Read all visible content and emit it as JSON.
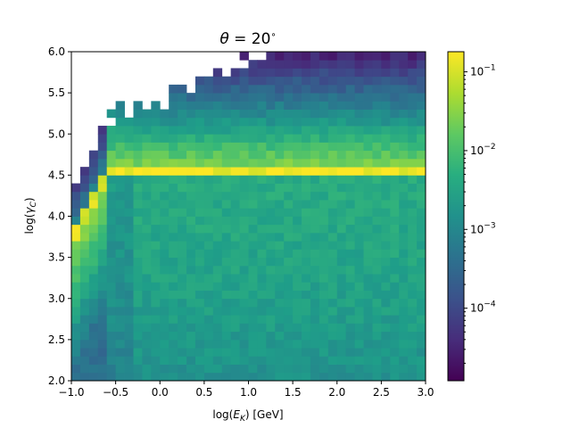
{
  "chart_data": {
    "type": "heatmap",
    "title": "θ = 20°",
    "title_parts": {
      "symbol": "θ",
      "rest": " = 20",
      "degree": "∘"
    },
    "xlabel": "log(E_K) [GeV]",
    "xlabel_parts": {
      "pre": "log(",
      "var": "E",
      "sub": "K",
      "post": ") [GeV]"
    },
    "ylabel": "log(γ_C)",
    "ylabel_parts": {
      "pre": "log(",
      "var": "γ",
      "sub": "C",
      "post": ")"
    },
    "xlim": [
      -1.0,
      3.0
    ],
    "ylim": [
      2.0,
      6.0
    ],
    "x_ticks": [
      "−1.0",
      "−0.5",
      "0.0",
      "0.5",
      "1.0",
      "1.5",
      "2.0",
      "2.5",
      "3.0"
    ],
    "x_tick_values": [
      -1.0,
      -0.5,
      0.0,
      0.5,
      1.0,
      1.5,
      2.0,
      2.5,
      3.0
    ],
    "y_ticks": [
      "2.0",
      "2.5",
      "3.0",
      "3.5",
      "4.0",
      "4.5",
      "5.0",
      "5.5",
      "6.0"
    ],
    "y_tick_values": [
      2.0,
      2.5,
      3.0,
      3.5,
      4.0,
      4.5,
      5.0,
      5.5,
      6.0
    ],
    "colorbar": {
      "scale": "log",
      "colormap": "viridis",
      "range": [
        1.2e-05,
        0.18
      ],
      "ticks": [
        {
          "base": "10",
          "exp": "−1",
          "value": 0.1
        },
        {
          "base": "10",
          "exp": "−2",
          "value": 0.01
        },
        {
          "base": "10",
          "exp": "−3",
          "value": 0.001
        },
        {
          "base": "10",
          "exp": "−4",
          "value": 0.0001
        }
      ]
    },
    "bins": {
      "nx": 40,
      "ny": 40
    },
    "features": {
      "ridge_log_gamma_c": 4.55,
      "ridge_value": 0.15,
      "onset_log_ek": -0.62,
      "low_energy_curve": "rises from log(γ_C)≈3.8 at log(E_K)=-1.0 to 4.5 at log(E_K)≈-0.55"
    }
  }
}
